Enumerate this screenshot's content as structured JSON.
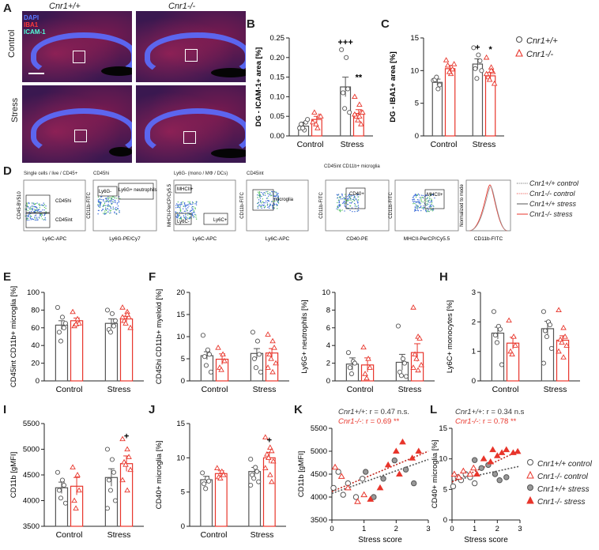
{
  "panel_labels": {
    "A": "A",
    "B": "B",
    "C": "C",
    "D": "D",
    "E": "E",
    "F": "F",
    "G": "G",
    "H": "H",
    "I": "I",
    "J": "J",
    "K": "K",
    "L": "L"
  },
  "panelA": {
    "genotype_wt": "Cnr1+/+",
    "genotype_ko": "Cnr1-/-",
    "row_control": "Control",
    "row_stress": "Stress",
    "stains": [
      {
        "label": "DAPI",
        "color": "#3b5bff"
      },
      {
        "label": "IBA1",
        "color": "#ff3030"
      },
      {
        "label": "ICAM-1",
        "color": "#40ffd0"
      }
    ]
  },
  "legend_top": [
    {
      "label": "Cnr1+/+",
      "marker": "circle",
      "color": "#555555"
    },
    {
      "label": "Cnr1-/-",
      "marker": "triangle",
      "color": "#e8352b"
    }
  ],
  "panelD": {
    "plot_titles": [
      "Single cells / live / CD45+",
      "CD45hi",
      "Ly6G- (mono / MΦ / DCs)",
      "CD45int",
      "CD45int CD11b+ microglia"
    ],
    "gates": [
      "CD45hi",
      "CD45int",
      "Ly6G-",
      "Ly6G+ neutrophils",
      "MHCII+",
      "Ly6C-",
      "Ly6C+",
      "microglia",
      "CD40+",
      "MHCII+"
    ],
    "x_labels": [
      "Ly6C-APC",
      "Ly6G-PE/Cy7",
      "Ly6C-APC",
      "Ly6C-APC",
      "CD40-PE",
      "MHCII-PerCP/Cy5.5",
      "CD11b-FITC"
    ],
    "y_labels": [
      "CD45-BV510",
      "CD11b-FITC",
      "MHCII-PerCP/Cy5.5",
      "CD11b-FITC",
      "CD11b-FITC",
      "CD11b-FITC",
      "Normalized to mode"
    ],
    "legend": [
      {
        "label": "Cnr1+/+ control",
        "style": "dotted",
        "color": "#555555"
      },
      {
        "label": "Cnr1-/- control",
        "style": "dotted",
        "color": "#e8352b"
      },
      {
        "label": "Cnr1+/+ stress",
        "style": "solid",
        "color": "#555555"
      },
      {
        "label": "Cnr1-/- stress",
        "style": "solid",
        "color": "#e8352b"
      }
    ]
  },
  "legend_bottom": [
    {
      "label": "Cnr1+/+ control",
      "marker": "circle-open",
      "color": "#555555"
    },
    {
      "label": "Cnr1-/- control",
      "marker": "triangle-open",
      "color": "#e8352b"
    },
    {
      "label": "Cnr1+/+ stress",
      "marker": "circle-filled",
      "color": "#888888"
    },
    {
      "label": "Cnr1-/- stress",
      "marker": "triangle-filled",
      "color": "#e8352b"
    }
  ],
  "colors": {
    "wt": "#555555",
    "ko": "#e8352b",
    "ko_fill": "#f3b9b3"
  },
  "chart_data": [
    {
      "id": "B",
      "type": "bar",
      "categories": [
        "Control",
        "Stress"
      ],
      "ylabel": "DG - ICAM-1+ area [%]",
      "ylabel_bold": "DG",
      "ylim": [
        0,
        0.25
      ],
      "yticks": [
        0.0,
        0.05,
        0.1,
        0.15,
        0.2,
        0.25
      ],
      "tick_decimals": 2,
      "series": [
        {
          "name": "Cnr1+/+",
          "values": [
            0.025,
            0.125
          ],
          "err": [
            0.01,
            0.025
          ]
        },
        {
          "name": "Cnr1-/-",
          "values": [
            0.042,
            0.057
          ],
          "err": [
            0.008,
            0.01
          ]
        }
      ],
      "points": [
        [
          [
            0.02,
            0.015,
            0.035,
            0.03,
            0.02,
            0.042
          ],
          [
            0.22,
            0.2,
            0.12,
            0.11,
            0.07,
            0.06
          ]
        ],
        [
          [
            0.035,
            0.02,
            0.05,
            0.06,
            0.03,
            0.05
          ],
          [
            0.1,
            0.08,
            0.06,
            0.05,
            0.04,
            0.06,
            0.055,
            0.05,
            0.03
          ]
        ]
      ],
      "annotations": [
        {
          "text": "+++",
          "group": 1,
          "series": 0,
          "y": 0.232
        },
        {
          "text": "**",
          "group": 1,
          "series": 1,
          "y": 0.142
        }
      ]
    },
    {
      "id": "C",
      "type": "bar",
      "categories": [
        "Control",
        "Stress"
      ],
      "ylabel": "DG - IBA1+ area [%]",
      "ylabel_bold": "DG",
      "ylim": [
        0,
        15
      ],
      "yticks": [
        0,
        5,
        10,
        15
      ],
      "tick_decimals": 0,
      "series": [
        {
          "name": "Cnr1+/+",
          "values": [
            8.2,
            11.0
          ],
          "err": [
            0.5,
            0.8
          ]
        },
        {
          "name": "Cnr1-/-",
          "values": [
            10.3,
            9.2
          ],
          "err": [
            0.5,
            0.5
          ]
        }
      ],
      "points": [
        [
          [
            8.5,
            7.2,
            7.8,
            8.6,
            9.0
          ],
          [
            13.5,
            12.4,
            11.5,
            10.3,
            8.8,
            10.0
          ]
        ],
        [
          [
            11.6,
            9.5,
            10.2,
            10.8,
            9.8,
            11.0
          ],
          [
            12.0,
            10.5,
            9.8,
            9.0,
            8.6,
            8.0,
            9.5,
            10.0
          ]
        ]
      ],
      "annotations": [
        {
          "text": "+",
          "group": 1,
          "series": 0,
          "y": 13.1
        },
        {
          "text": "*",
          "group": 1,
          "series": 1,
          "y": 12.8
        }
      ]
    },
    {
      "id": "E",
      "type": "bar",
      "categories": [
        "Control",
        "Stress"
      ],
      "ylabel": "CD45int CD11b+ microglia [%]",
      "ylim": [
        0,
        100
      ],
      "yticks": [
        0,
        20,
        40,
        60,
        80,
        100
      ],
      "tick_decimals": 0,
      "series": [
        {
          "name": "Cnr1+/+",
          "values": [
            63,
            65
          ],
          "err": [
            5,
            5
          ]
        },
        {
          "name": "Cnr1-/-",
          "values": [
            68,
            70
          ],
          "err": [
            3,
            3
          ]
        }
      ],
      "points": [
        [
          [
            83,
            72,
            60,
            55,
            45,
            65
          ],
          [
            80,
            76,
            62,
            58,
            55,
            68
          ]
        ],
        [
          [
            78,
            70,
            65,
            62,
            64
          ],
          [
            83,
            78,
            72,
            68,
            65,
            60,
            72,
            75
          ]
        ]
      ]
    },
    {
      "id": "F",
      "type": "bar",
      "categories": [
        "Control",
        "Stress"
      ],
      "ylabel": "CD45hi CD11b+ myeloid [%]",
      "ylim": [
        0,
        20
      ],
      "yticks": [
        0,
        5,
        10,
        15,
        20
      ],
      "tick_decimals": 0,
      "series": [
        {
          "name": "Cnr1+/+",
          "values": [
            5.7,
            6.2
          ],
          "err": [
            0.9,
            1.1
          ]
        },
        {
          "name": "Cnr1-/-",
          "values": [
            4.9,
            6.3
          ],
          "err": [
            1.2,
            1.0
          ]
        }
      ],
      "points": [
        [
          [
            10.3,
            7.0,
            6.0,
            5.5,
            3.5,
            2.0
          ],
          [
            11.0,
            9.0,
            6.0,
            5.0,
            3.0,
            2.0
          ]
        ],
        [
          [
            7.5,
            6.0,
            4.5,
            3.0,
            2.5
          ],
          [
            10.5,
            9.0,
            7.5,
            6.0,
            5.0,
            4.0,
            3.0,
            2.0
          ]
        ]
      ]
    },
    {
      "id": "G",
      "type": "bar",
      "categories": [
        "Control",
        "Stress"
      ],
      "ylabel": "Ly6G+ neutrophils [%]",
      "ylim": [
        0,
        10
      ],
      "yticks": [
        0,
        2,
        4,
        6,
        8,
        10
      ],
      "tick_decimals": 0,
      "series": [
        {
          "name": "Cnr1+/+",
          "values": [
            1.9,
            2.1
          ],
          "err": [
            0.7,
            0.9
          ]
        },
        {
          "name": "Cnr1-/-",
          "values": [
            1.8,
            3.2
          ],
          "err": [
            0.8,
            1.0
          ]
        }
      ],
      "points": [
        [
          [
            3.2,
            2.2,
            2.0,
            1.5,
            0.8
          ],
          [
            6.2,
            2.5,
            2.0,
            1.0,
            0.6,
            0.5
          ]
        ],
        [
          [
            3.8,
            2.5,
            1.5,
            0.8,
            0.3
          ],
          [
            8.3,
            5.0,
            4.8,
            3.0,
            2.5,
            1.8,
            1.5,
            1.2
          ]
        ]
      ]
    },
    {
      "id": "H",
      "type": "bar",
      "categories": [
        "Control",
        "Stress"
      ],
      "ylabel": "Ly6C+ monocytes [%]",
      "ylim": [
        0,
        3
      ],
      "yticks": [
        0,
        1,
        2,
        3
      ],
      "tick_decimals": 0,
      "series": [
        {
          "name": "Cnr1+/+",
          "values": [
            1.62,
            1.77
          ],
          "err": [
            0.2,
            0.25
          ]
        },
        {
          "name": "Cnr1-/-",
          "values": [
            1.28,
            1.38
          ],
          "err": [
            0.2,
            0.15
          ]
        }
      ],
      "points": [
        [
          [
            2.35,
            1.85,
            1.75,
            1.55,
            1.3,
            0.55
          ],
          [
            2.35,
            2.0,
            1.9,
            1.7,
            1.5,
            1.1,
            0.6
          ]
        ],
        [
          [
            2.05,
            1.5,
            1.2,
            1.0,
            0.9
          ],
          [
            2.4,
            1.8,
            1.5,
            1.4,
            1.3,
            1.2,
            1.0,
            0.8
          ]
        ]
      ]
    },
    {
      "id": "I",
      "type": "bar",
      "categories": [
        "Control",
        "Stress"
      ],
      "ylabel": "CD11b [gMFI]",
      "ylim": [
        3500,
        5500
      ],
      "yticks": [
        3500,
        4000,
        4500,
        5000,
        5500
      ],
      "tick_decimals": 0,
      "series": [
        {
          "name": "Cnr1+/+",
          "values": [
            4250,
            4450
          ],
          "err": [
            110,
            170
          ]
        },
        {
          "name": "Cnr1-/-",
          "values": [
            4280,
            4720
          ],
          "err": [
            170,
            150
          ]
        }
      ],
      "points": [
        [
          [
            4550,
            4400,
            4300,
            4200,
            4050,
            3950
          ],
          [
            5000,
            4800,
            4550,
            4400,
            4200,
            4000,
            3850
          ]
        ],
        [
          [
            4650,
            4500,
            4200,
            4000,
            3850
          ],
          [
            5200,
            5000,
            4850,
            4750,
            4700,
            4600,
            4400,
            4200
          ]
        ]
      ],
      "annotations": [
        {
          "text": "+",
          "group": 1,
          "series": 1,
          "y": 5200
        }
      ]
    },
    {
      "id": "J",
      "type": "bar",
      "categories": [
        "Control",
        "Stress"
      ],
      "ylabel": "CD40+ microglia [%]",
      "ylim": [
        0,
        15
      ],
      "yticks": [
        0,
        5,
        10,
        15
      ],
      "tick_decimals": 0,
      "series": [
        {
          "name": "Cnr1+/+",
          "values": [
            6.8,
            8.0
          ],
          "err": [
            0.5,
            0.6
          ]
        },
        {
          "name": "Cnr1-/-",
          "values": [
            7.7,
            10.0
          ],
          "err": [
            0.4,
            0.8
          ]
        }
      ],
      "points": [
        [
          [
            7.8,
            7.0,
            6.6,
            6.2,
            5.5
          ],
          [
            9.8,
            8.6,
            8.0,
            7.5,
            7.0,
            6.5,
            6.0
          ]
        ],
        [
          [
            8.5,
            8.0,
            7.5,
            7.2,
            7.0
          ],
          [
            13.0,
            11.5,
            11.0,
            10.5,
            10.0,
            9.5,
            8.5,
            7.5,
            6.5
          ]
        ]
      ],
      "annotations": [
        {
          "text": "+",
          "group": 1,
          "series": 1,
          "y": 12.2
        }
      ]
    },
    {
      "id": "K",
      "type": "scatter",
      "xlabel": "Stress score",
      "ylabel": "CD11b [gMFI]",
      "xlim": [
        0,
        3
      ],
      "ylim": [
        3500,
        5500
      ],
      "xticks": [
        0,
        1,
        2,
        3
      ],
      "yticks": [
        3500,
        4000,
        4500,
        5000,
        5500
      ],
      "stats": [
        {
          "label": "Cnr1+/+",
          "value": ": r = 0.47 n.s."
        },
        {
          "label": "Cnr1-/-",
          "value": ": r = 0.69 **"
        }
      ],
      "trend": [
        {
          "series": "wt",
          "x": [
            0,
            3
          ],
          "y": [
            4080,
            4820
          ]
        },
        {
          "series": "ko",
          "x": [
            0,
            3
          ],
          "y": [
            4120,
            5000
          ]
        }
      ],
      "series": [
        {
          "name": "Cnr1+/+ control",
          "x": [
            0.05,
            0.2,
            0.35,
            0.5,
            0.75,
            0.95
          ],
          "y": [
            4200,
            4550,
            4050,
            4300,
            4000,
            4400
          ]
        },
        {
          "name": "Cnr1-/- control",
          "x": [
            0.1,
            0.3,
            0.5,
            0.8,
            1.0
          ],
          "y": [
            4650,
            4450,
            4200,
            3900,
            4050
          ]
        },
        {
          "name": "Cnr1+/+ stress",
          "x": [
            1.05,
            1.3,
            1.6,
            1.95,
            2.3,
            2.55
          ],
          "y": [
            4550,
            4000,
            4400,
            4800,
            4600,
            4300
          ]
        },
        {
          "name": "Cnr1-/- stress",
          "x": [
            1.2,
            1.5,
            1.75,
            2.0,
            2.2,
            2.5,
            2.7,
            2.1
          ],
          "y": [
            3950,
            4200,
            4700,
            5000,
            5200,
            4850,
            5000,
            4500
          ]
        }
      ]
    },
    {
      "id": "L",
      "type": "scatter",
      "xlabel": "Stress score",
      "ylabel": "CD40+ microglia [%]",
      "xlim": [
        0,
        3
      ],
      "ylim": [
        0,
        15
      ],
      "xticks": [
        0,
        1,
        2,
        3
      ],
      "yticks": [
        0,
        5,
        10,
        15
      ],
      "stats": [
        {
          "label": "Cnr1+/+",
          "value": ": r = 0.34 n.s."
        },
        {
          "label": "Cnr1-/-",
          "value": ": r = 0.78 **"
        }
      ],
      "trend": [
        {
          "series": "wt",
          "x": [
            0,
            3
          ],
          "y": [
            6.4,
            8.8
          ]
        },
        {
          "series": "ko",
          "x": [
            0,
            3
          ],
          "y": [
            6.2,
            11.4
          ]
        }
      ],
      "series": [
        {
          "name": "Cnr1+/+ control",
          "x": [
            0.05,
            0.25,
            0.4,
            0.6,
            0.8,
            1.0
          ],
          "y": [
            5.5,
            7.0,
            6.5,
            7.5,
            7.0,
            6.0
          ]
        },
        {
          "name": "Cnr1-/- control",
          "x": [
            0.1,
            0.3,
            0.5,
            0.8,
            0.95
          ],
          "y": [
            7.5,
            7.0,
            8.0,
            7.5,
            8.5
          ]
        },
        {
          "name": "Cnr1+/+ stress",
          "x": [
            1.0,
            1.3,
            1.6,
            1.9,
            2.1,
            2.4
          ],
          "y": [
            9.8,
            8.5,
            9.0,
            7.5,
            6.5,
            7.0
          ]
        },
        {
          "name": "Cnr1-/- stress",
          "x": [
            1.1,
            1.4,
            1.7,
            1.8,
            2.0,
            2.2,
            2.4,
            2.7,
            2.9
          ],
          "y": [
            7.5,
            10.0,
            9.5,
            11.5,
            10.5,
            11.0,
            11.5,
            11.0,
            11.2
          ]
        }
      ]
    }
  ]
}
